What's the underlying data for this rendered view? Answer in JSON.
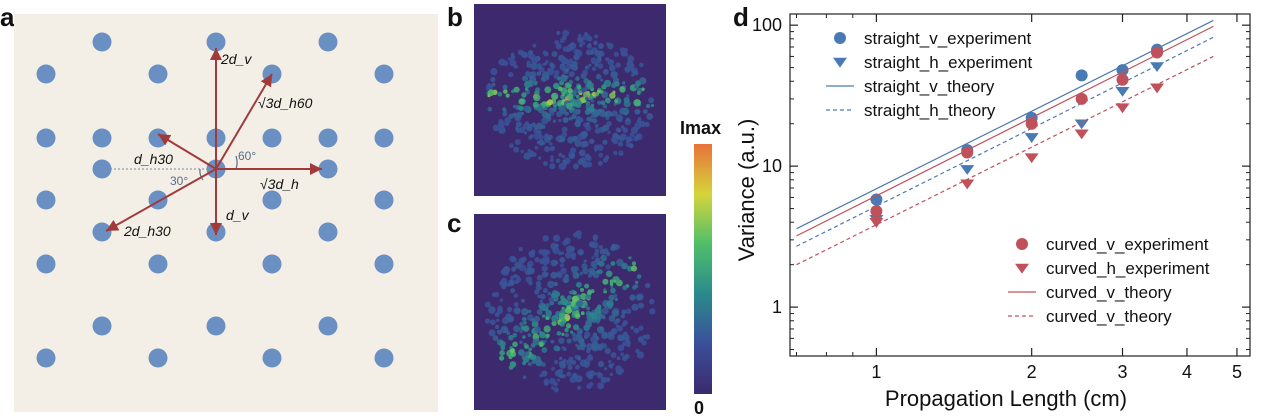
{
  "panels": {
    "a": {
      "letter": "a"
    },
    "b": {
      "letter": "b"
    },
    "c": {
      "letter": "c"
    },
    "d": {
      "letter": "d"
    }
  },
  "lattice": {
    "labels": {
      "v2": "2d_v",
      "h60": "√3d_h60",
      "h30": "d_h30",
      "h": "√3d_h",
      "h30_2": "2d_h30",
      "v": "d_v",
      "ang60": "60°",
      "ang30": "30°"
    },
    "colors": {
      "dot": "#6a8fc2",
      "arrow": "#a23a3a",
      "background": "#f3efe6"
    }
  },
  "colorbar": {
    "max_label": "Imax",
    "min_label": "0"
  },
  "chart_data": {
    "type": "scatter",
    "xlabel": "Propagation Length (cm)",
    "ylabel": "Variance (a.u.)",
    "xscale": "log",
    "yscale": "log",
    "xlim": [
      0.68,
      5.3
    ],
    "ylim": [
      0.45,
      120
    ],
    "x_ticks": [
      "1",
      "2",
      "3",
      "4",
      "5"
    ],
    "y_ticks": [
      "1",
      "10",
      "100"
    ],
    "grid": false,
    "legend_placement": [
      "top-left",
      "bottom-right"
    ],
    "series": [
      {
        "name": "straight_v_experiment",
        "kind": "marker",
        "marker": "circle",
        "color": "#4a7ab5",
        "x": [
          1,
          1.5,
          2,
          2.5,
          3,
          3.5
        ],
        "y": [
          5.8,
          13,
          22,
          44,
          48,
          67
        ]
      },
      {
        "name": "straight_h_experiment",
        "kind": "marker",
        "marker": "triangle-down",
        "color": "#4a7ab5",
        "x": [
          1,
          1.5,
          2,
          2.5,
          3,
          3.5
        ],
        "y": [
          4.2,
          9.5,
          16,
          20,
          34,
          51
        ]
      },
      {
        "name": "straight_v_theory",
        "kind": "line",
        "dash": "solid",
        "color": "#4a7ab5",
        "x": [
          0.7,
          4.5
        ],
        "y": [
          3.6,
          108
        ]
      },
      {
        "name": "straight_h_theory",
        "kind": "line",
        "dash": "dashed",
        "color": "#4a7ab5",
        "x": [
          0.7,
          4.5
        ],
        "y": [
          2.7,
          82
        ]
      },
      {
        "name": "curved_v_experiment",
        "kind": "marker",
        "marker": "circle",
        "color": "#c0505a",
        "x": [
          1,
          1.5,
          2,
          2.5,
          3,
          3.5
        ],
        "y": [
          4.8,
          12.5,
          20,
          30,
          41,
          64
        ]
      },
      {
        "name": "curved_h_experiment",
        "kind": "marker",
        "marker": "triangle-down",
        "color": "#c0505a",
        "x": [
          1,
          1.5,
          2,
          2.5,
          3,
          3.5
        ],
        "y": [
          4,
          7.5,
          11.5,
          17,
          26,
          36
        ]
      },
      {
        "name": "curved_v_theory",
        "kind": "line",
        "dash": "solid",
        "color": "#c0505a",
        "x": [
          0.7,
          4.5
        ],
        "y": [
          3.2,
          98
        ]
      },
      {
        "name": "curved_v_theory",
        "kind": "line",
        "dash": "dashed",
        "color": "#c0505a",
        "x": [
          0.7,
          4.5
        ],
        "y": [
          2.0,
          60
        ]
      }
    ]
  }
}
